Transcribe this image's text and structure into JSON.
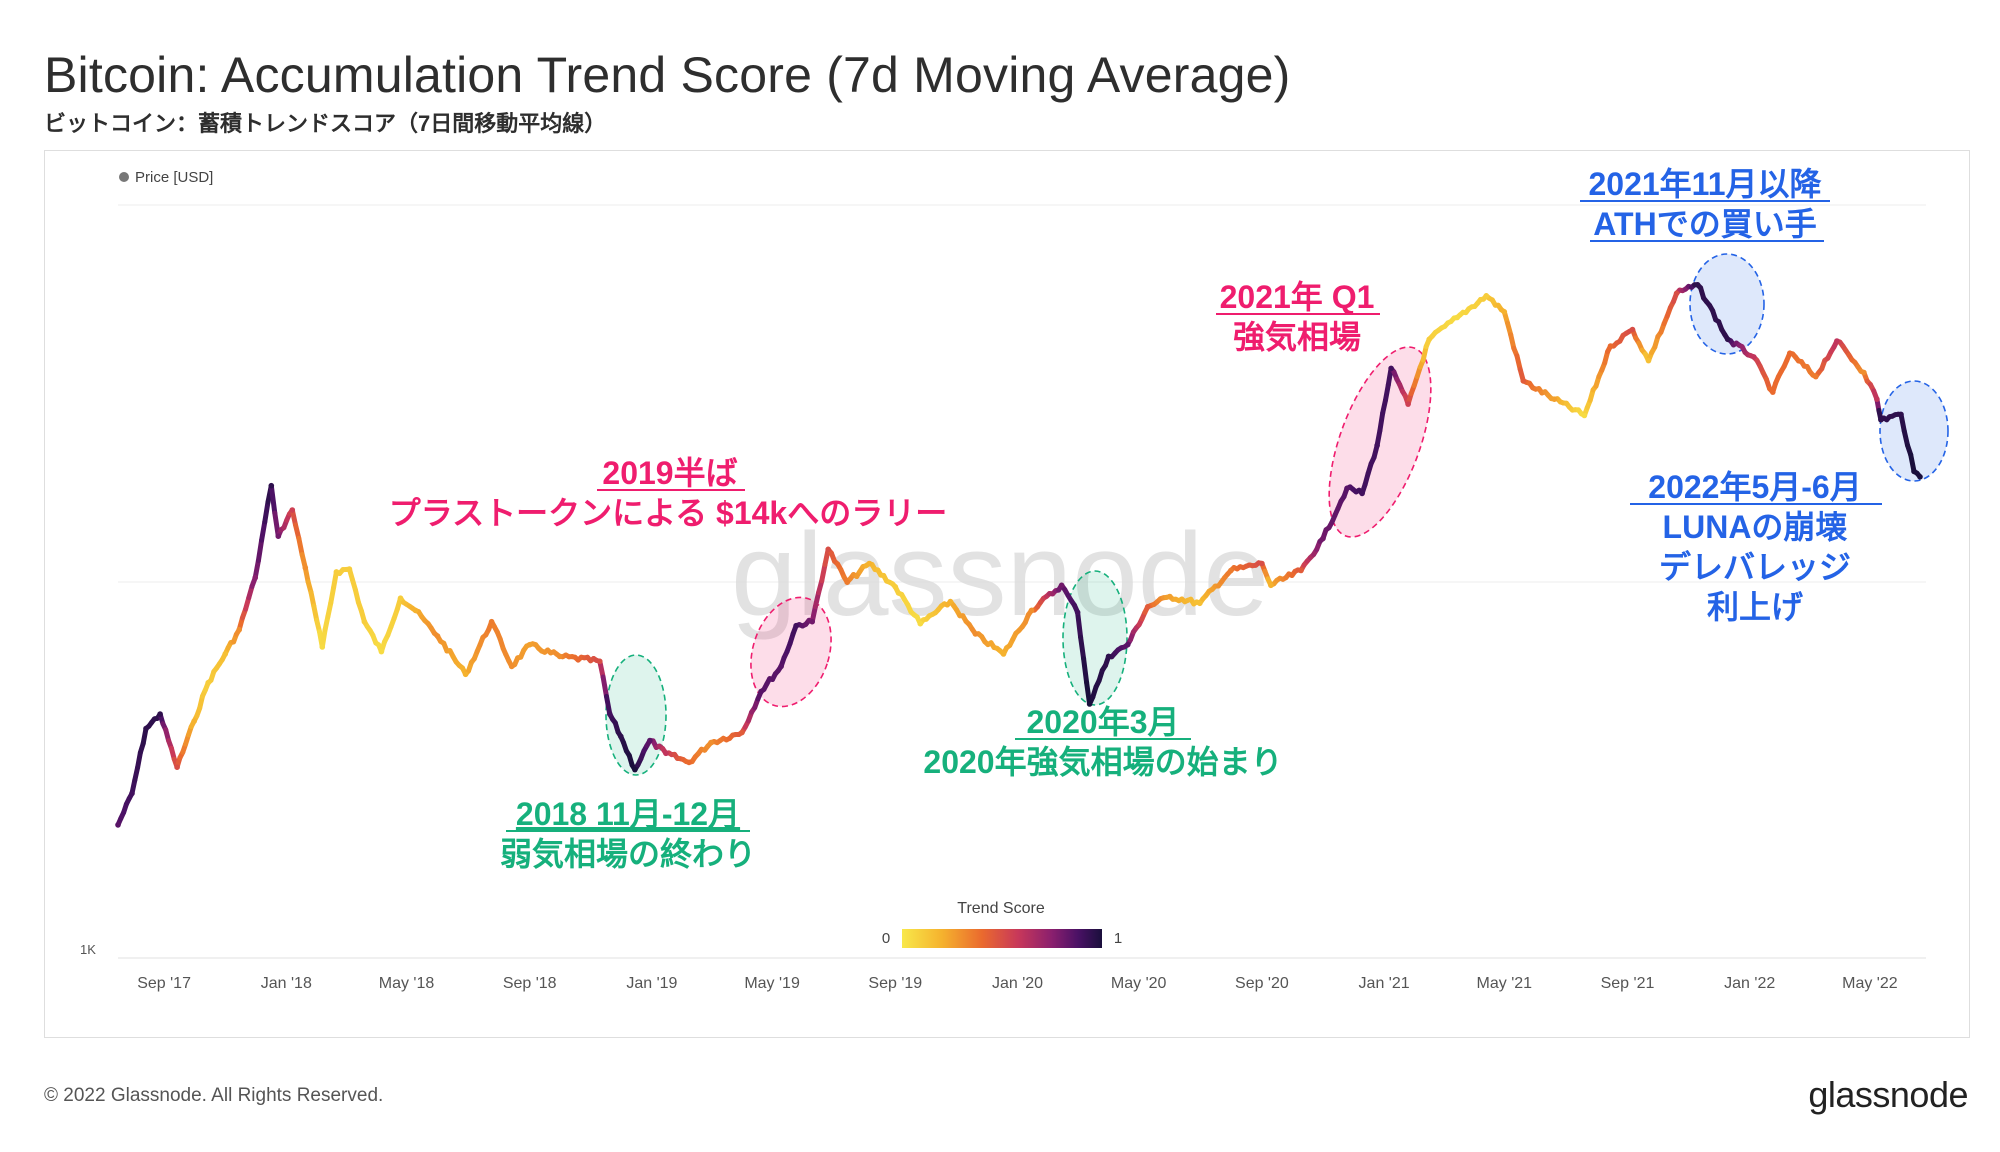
{
  "header": {
    "title": "Bitcoin: Accumulation Trend Score (7d Moving Average)",
    "subtitle": "ビットコイン：蓄積トレンドスコア（7日間移動平均線）"
  },
  "footer": {
    "copyright": "© 2022 Glassnode. All Rights Reserved.",
    "brand": "glassnode",
    "watermark": "glassnode"
  },
  "colors": {
    "pink": "#ef1d6e",
    "green": "#16b07c",
    "blue": "#2463e6",
    "gradient": [
      "#f8e84a",
      "#f5b22e",
      "#ea6a2e",
      "#c8385a",
      "#8a1f6e",
      "#4a1165",
      "#1a0f3c"
    ]
  },
  "chart_data": {
    "type": "line",
    "title": "Bitcoin: Accumulation Trend Score (7d Moving Average)",
    "legend": {
      "label": "Price [USD]",
      "position": "top-left"
    },
    "y_axis": {
      "scale": "log",
      "tick_labels": [
        "1K"
      ]
    },
    "x_tick_labels": [
      "Sep '17",
      "Jan '18",
      "May '18",
      "Sep '18",
      "Jan '19",
      "May '19",
      "Sep '19",
      "Jan '20",
      "May '20",
      "Sep '20",
      "Jan '21",
      "May '21",
      "Sep '21",
      "Jan '22",
      "May '22"
    ],
    "colorbar": {
      "title": "Trend Score",
      "min_label": "0",
      "max_label": "1"
    },
    "series": [
      {
        "name": "Price [USD]",
        "points": [
          {
            "date": "2017-07-17",
            "price": 2300,
            "score": 0.85
          },
          {
            "date": "2017-07-31",
            "price": 2800,
            "score": 0.9
          },
          {
            "date": "2017-08-14",
            "price": 4200,
            "score": 0.95
          },
          {
            "date": "2017-08-28",
            "price": 4600,
            "score": 0.95
          },
          {
            "date": "2017-09-14",
            "price": 3300,
            "score": 0.5
          },
          {
            "date": "2017-10-01",
            "price": 4400,
            "score": 0.2
          },
          {
            "date": "2017-10-15",
            "price": 5600,
            "score": 0.1
          },
          {
            "date": "2017-11-01",
            "price": 6700,
            "score": 0.15
          },
          {
            "date": "2017-11-15",
            "price": 7800,
            "score": 0.3
          },
          {
            "date": "2017-12-01",
            "price": 10800,
            "score": 0.75
          },
          {
            "date": "2017-12-17",
            "price": 19200,
            "score": 0.95
          },
          {
            "date": "2017-12-24",
            "price": 14000,
            "score": 0.8
          },
          {
            "date": "2018-01-07",
            "price": 16500,
            "score": 0.55
          },
          {
            "date": "2018-01-20",
            "price": 11500,
            "score": 0.3
          },
          {
            "date": "2018-02-06",
            "price": 7000,
            "score": 0.05
          },
          {
            "date": "2018-02-20",
            "price": 11200,
            "score": 0.1
          },
          {
            "date": "2018-03-05",
            "price": 11400,
            "score": 0.1
          },
          {
            "date": "2018-03-20",
            "price": 8200,
            "score": 0.1
          },
          {
            "date": "2018-04-06",
            "price": 6800,
            "score": 0.05
          },
          {
            "date": "2018-04-25",
            "price": 9500,
            "score": 0.1
          },
          {
            "date": "2018-05-10",
            "price": 8800,
            "score": 0.2
          },
          {
            "date": "2018-06-01",
            "price": 7500,
            "score": 0.3
          },
          {
            "date": "2018-06-29",
            "price": 5900,
            "score": 0.2
          },
          {
            "date": "2018-07-25",
            "price": 8200,
            "score": 0.35
          },
          {
            "date": "2018-08-14",
            "price": 6200,
            "score": 0.3
          },
          {
            "date": "2018-09-01",
            "price": 7100,
            "score": 0.25
          },
          {
            "date": "2018-10-01",
            "price": 6600,
            "score": 0.3
          },
          {
            "date": "2018-11-10",
            "price": 6400,
            "score": 0.5
          },
          {
            "date": "2018-11-20",
            "price": 4600,
            "score": 0.9
          },
          {
            "date": "2018-12-01",
            "price": 4000,
            "score": 0.95
          },
          {
            "date": "2018-12-15",
            "price": 3250,
            "score": 1.0
          },
          {
            "date": "2018-12-30",
            "price": 3900,
            "score": 0.85
          },
          {
            "date": "2019-01-15",
            "price": 3600,
            "score": 0.6
          },
          {
            "date": "2019-02-07",
            "price": 3400,
            "score": 0.4
          },
          {
            "date": "2019-03-01",
            "price": 3850,
            "score": 0.3
          },
          {
            "date": "2019-04-01",
            "price": 4100,
            "score": 0.45
          },
          {
            "date": "2019-04-20",
            "price": 5300,
            "score": 0.85
          },
          {
            "date": "2019-05-10",
            "price": 6200,
            "score": 0.85
          },
          {
            "date": "2019-05-25",
            "price": 8000,
            "score": 0.9
          },
          {
            "date": "2019-06-10",
            "price": 8200,
            "score": 0.8
          },
          {
            "date": "2019-06-26",
            "price": 12900,
            "score": 0.5
          },
          {
            "date": "2019-07-15",
            "price": 10500,
            "score": 0.35
          },
          {
            "date": "2019-08-06",
            "price": 11800,
            "score": 0.2
          },
          {
            "date": "2019-09-01",
            "price": 10200,
            "score": 0.1
          },
          {
            "date": "2019-09-26",
            "price": 8100,
            "score": 0.05
          },
          {
            "date": "2019-10-26",
            "price": 9300,
            "score": 0.2
          },
          {
            "date": "2019-11-20",
            "price": 7600,
            "score": 0.3
          },
          {
            "date": "2019-12-18",
            "price": 6700,
            "score": 0.2
          },
          {
            "date": "2020-01-15",
            "price": 8800,
            "score": 0.3
          },
          {
            "date": "2020-02-14",
            "price": 10300,
            "score": 0.8
          },
          {
            "date": "2020-03-01",
            "price": 8700,
            "score": 0.9
          },
          {
            "date": "2020-03-13",
            "price": 4900,
            "score": 1.0
          },
          {
            "date": "2020-04-01",
            "price": 6600,
            "score": 0.95
          },
          {
            "date": "2020-04-20",
            "price": 7100,
            "score": 0.85
          },
          {
            "date": "2020-05-10",
            "price": 9000,
            "score": 0.45
          },
          {
            "date": "2020-06-01",
            "price": 9600,
            "score": 0.25
          },
          {
            "date": "2020-07-01",
            "price": 9200,
            "score": 0.15
          },
          {
            "date": "2020-08-01",
            "price": 11300,
            "score": 0.35
          },
          {
            "date": "2020-09-01",
            "price": 11800,
            "score": 0.5
          },
          {
            "date": "2020-09-10",
            "price": 10300,
            "score": 0.2
          },
          {
            "date": "2020-10-10",
            "price": 11300,
            "score": 0.45
          },
          {
            "date": "2020-11-01",
            "price": 13800,
            "score": 0.8
          },
          {
            "date": "2020-11-25",
            "price": 18900,
            "score": 0.85
          },
          {
            "date": "2020-12-10",
            "price": 18300,
            "score": 0.9
          },
          {
            "date": "2020-12-25",
            "price": 24700,
            "score": 0.9
          },
          {
            "date": "2021-01-08",
            "price": 40000,
            "score": 0.9
          },
          {
            "date": "2021-01-25",
            "price": 32000,
            "score": 0.55
          },
          {
            "date": "2021-02-15",
            "price": 48000,
            "score": 0.1
          },
          {
            "date": "2021-03-15",
            "price": 55000,
            "score": 0.05
          },
          {
            "date": "2021-04-13",
            "price": 63000,
            "score": 0.1
          },
          {
            "date": "2021-05-01",
            "price": 57000,
            "score": 0.2
          },
          {
            "date": "2021-05-20",
            "price": 37000,
            "score": 0.45
          },
          {
            "date": "2021-06-20",
            "price": 33000,
            "score": 0.25
          },
          {
            "date": "2021-07-20",
            "price": 29800,
            "score": 0.05
          },
          {
            "date": "2021-08-15",
            "price": 46000,
            "score": 0.4
          },
          {
            "date": "2021-09-06",
            "price": 51000,
            "score": 0.5
          },
          {
            "date": "2021-09-22",
            "price": 42000,
            "score": 0.15
          },
          {
            "date": "2021-10-20",
            "price": 64000,
            "score": 0.5
          },
          {
            "date": "2021-11-10",
            "price": 67500,
            "score": 0.95
          },
          {
            "date": "2021-12-10",
            "price": 48000,
            "score": 0.95
          },
          {
            "date": "2022-01-05",
            "price": 43000,
            "score": 0.6
          },
          {
            "date": "2022-01-24",
            "price": 34500,
            "score": 0.4
          },
          {
            "date": "2022-02-10",
            "price": 44000,
            "score": 0.4
          },
          {
            "date": "2022-03-08",
            "price": 38000,
            "score": 0.35
          },
          {
            "date": "2022-03-29",
            "price": 47500,
            "score": 0.6
          },
          {
            "date": "2022-04-25",
            "price": 39000,
            "score": 0.3
          },
          {
            "date": "2022-05-08",
            "price": 33000,
            "score": 0.6
          },
          {
            "date": "2022-05-12",
            "price": 29000,
            "score": 0.95
          },
          {
            "date": "2022-06-01",
            "price": 30000,
            "score": 0.95
          },
          {
            "date": "2022-06-14",
            "price": 21000,
            "score": 1.0
          },
          {
            "date": "2022-06-20",
            "price": 20300,
            "score": 1.0
          }
        ]
      }
    ],
    "annotations": [
      {
        "id": "ann-2018",
        "color": "green",
        "lines": [
          "2018 11月-12月",
          "弱気相場の終わり"
        ],
        "underline_first": true
      },
      {
        "id": "ann-2019",
        "color": "pink",
        "lines": [
          "2019半ば",
          "プラストークンによる $14kへのラリー"
        ],
        "underline_first": true
      },
      {
        "id": "ann-2020",
        "color": "green",
        "lines": [
          "2020年3月",
          "2020年強気相場の始まり"
        ],
        "underline_first": true
      },
      {
        "id": "ann-2021q1",
        "color": "pink",
        "lines": [
          "2021年 Q1",
          "強気相場"
        ],
        "underline_first": true
      },
      {
        "id": "ann-2021nov",
        "color": "blue",
        "lines": [
          "2021年11月以降",
          "ATHでの買い手"
        ],
        "underline_first": true,
        "underline_all": true
      },
      {
        "id": "ann-2022",
        "color": "blue",
        "lines": [
          "2022年5月-6月",
          "LUNAの崩壊",
          "デレバレッジ",
          "利上げ"
        ],
        "underline_first": true
      }
    ]
  }
}
